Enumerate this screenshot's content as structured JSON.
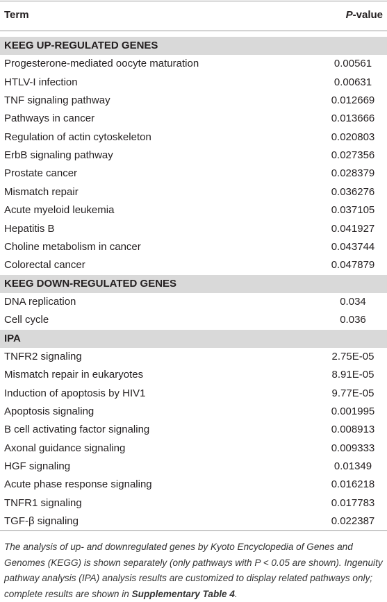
{
  "header": {
    "term": "Term",
    "pvalue": "P-value"
  },
  "sections": [
    {
      "title": "KEEG UP-REGULATED GENES",
      "rows": [
        [
          "Progesterone-mediated oocyte maturation",
          "0.00561"
        ],
        [
          "HTLV-I infection",
          "0.00631"
        ],
        [
          "TNF signaling pathway",
          "0.012669"
        ],
        [
          "Pathways in cancer",
          "0.013666"
        ],
        [
          "Regulation of actin cytoskeleton",
          "0.020803"
        ],
        [
          "ErbB signaling pathway",
          "0.027356"
        ],
        [
          "Prostate cancer",
          "0.028379"
        ],
        [
          "Mismatch repair",
          "0.036276"
        ],
        [
          "Acute myeloid leukemia",
          "0.037105"
        ],
        [
          "Hepatitis B",
          "0.041927"
        ],
        [
          "Choline metabolism in cancer",
          "0.043744"
        ],
        [
          "Colorectal cancer",
          "0.047879"
        ]
      ]
    },
    {
      "title": "KEEG DOWN-REGULATED GENES",
      "rows": [
        [
          "DNA replication",
          "0.034"
        ],
        [
          "Cell cycle",
          "0.036"
        ]
      ]
    },
    {
      "title": "IPA",
      "rows": [
        [
          "TNFR2 signaling",
          "2.75E-05"
        ],
        [
          "Mismatch repair in eukaryotes",
          "8.91E-05"
        ],
        [
          "Induction of apoptosis by HIV1",
          "9.77E-05"
        ],
        [
          "Apoptosis signaling",
          "0.001995"
        ],
        [
          "B cell activating factor signaling",
          "0.008913"
        ],
        [
          "Axonal guidance signaling",
          "0.009333"
        ],
        [
          "HGF signaling",
          "0.01349"
        ],
        [
          "Acute phase response signaling",
          "0.016218"
        ],
        [
          "TNFR1 signaling",
          "0.017783"
        ],
        [
          "TGF-β signaling",
          "0.022387"
        ]
      ]
    }
  ],
  "footnote": {
    "text": "The analysis of up- and downregulated genes by Kyoto Encyclopedia of Genes and Genomes (KEGG) is shown separately (only pathways with P < 0.05 are shown). Ingenuity pathway analysis (IPA) analysis results are customized to display related pathways only; complete results are shown in ",
    "emphasis": "Supplementary Table 4",
    "end": "."
  }
}
